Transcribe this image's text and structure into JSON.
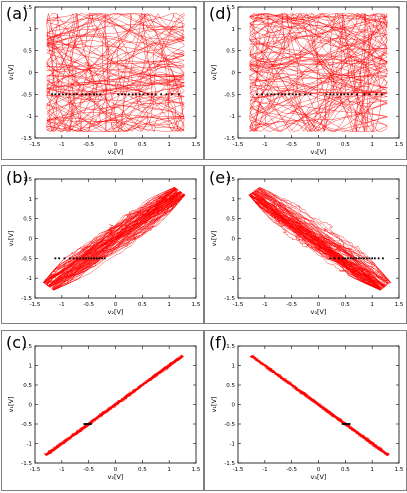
{
  "figure": {
    "grid": false,
    "colors": {
      "trajectory": "#ff0000",
      "marker": "#000000",
      "frame": "#7f7f7f"
    }
  },
  "chart_data": [
    {
      "type": "line",
      "panel_label": "(a)",
      "pattern": "chaotic",
      "xlabel": "v₂[V]",
      "ylabel": "v₁[V]",
      "xlim": [
        -1.5,
        1.5
      ],
      "ylim": [
        -1.5,
        1.5
      ],
      "x_ticks": [
        "-1.5",
        "-1",
        "-0.5",
        "0",
        "0.5",
        "1",
        "1.5"
      ],
      "y_ticks": [
        "-1.5",
        "-1",
        "-0.5",
        "0",
        "0.5",
        "1",
        "1.5"
      ],
      "marker_y": -0.5,
      "marker_x": [
        -1.18,
        -1.12,
        -1.05,
        -0.98,
        -0.92,
        -0.85,
        -0.78,
        -0.72,
        -0.62,
        -0.55,
        -0.48,
        -0.4,
        -0.35,
        -0.28,
        0.05,
        0.12,
        0.18,
        0.25,
        0.32,
        0.38,
        0.45,
        0.52,
        0.6,
        0.68,
        0.75,
        0.85,
        0.95,
        1.05,
        1.18
      ]
    },
    {
      "type": "line",
      "panel_label": "(b)",
      "pattern": "band-positive",
      "xlabel": "v₂[V]",
      "ylabel": "v₁[V]",
      "xlim": [
        -1.5,
        1.5
      ],
      "ylim": [
        -1.5,
        1.5
      ],
      "x_ticks": [
        "-1.5",
        "-1",
        "-0.5",
        "0",
        "0.5",
        "1",
        "1.5"
      ],
      "y_ticks": [
        "-1.5",
        "-1",
        "-0.5",
        "0",
        "0.5",
        "1",
        "1.5"
      ],
      "marker_y": -0.5,
      "marker_x": [
        -1.12,
        -1.05,
        -0.95,
        -0.85,
        -0.78,
        -0.72,
        -0.66,
        -0.6,
        -0.55,
        -0.5,
        -0.45,
        -0.4,
        -0.35,
        -0.3,
        -0.25,
        -0.2
      ]
    },
    {
      "type": "line",
      "panel_label": "(c)",
      "pattern": "line-positive",
      "xlabel": "v₂[V]",
      "ylabel": "v₁[V]",
      "xlim": [
        -1.5,
        1.5
      ],
      "ylim": [
        -1.5,
        1.5
      ],
      "x_ticks": [
        "-1.5",
        "-1",
        "-0.5",
        "0",
        "0.5",
        "1",
        "1.5"
      ],
      "y_ticks": [
        "-1.5",
        "-1",
        "-0.5",
        "0",
        "0.5",
        "1",
        "1.5"
      ],
      "marker_y": -0.5,
      "marker_x": [
        -0.58,
        -0.55,
        -0.52,
        -0.5,
        -0.48,
        -0.46
      ]
    },
    {
      "type": "line",
      "panel_label": "(d)",
      "pattern": "chaotic",
      "xlabel": "v₃[V]",
      "ylabel": "v₁[V]",
      "xlim": [
        -1.5,
        1.5
      ],
      "ylim": [
        -1.5,
        1.5
      ],
      "x_ticks": [
        "-1.5",
        "-1",
        "-0.5",
        "0",
        "0.5",
        "1",
        "1.5"
      ],
      "y_ticks": [
        "-1.5",
        "-1",
        "-0.5",
        "0",
        "0.5",
        "1",
        "1.5"
      ],
      "marker_y": -0.5,
      "marker_x": [
        -1.15,
        -1.05,
        -0.95,
        -0.88,
        -0.82,
        -0.75,
        -0.68,
        -0.62,
        -0.55,
        -0.48,
        -0.42,
        -0.35,
        -0.25,
        -0.15,
        0.15,
        0.22,
        0.28,
        0.35,
        0.42,
        0.48,
        0.55,
        0.62,
        0.72,
        0.85,
        0.95,
        1.08,
        1.18
      ]
    },
    {
      "type": "line",
      "panel_label": "(e)",
      "pattern": "band-negative",
      "xlabel": "v₃[V]",
      "ylabel": "v₁[V]",
      "xlim": [
        -1.5,
        1.5
      ],
      "ylim": [
        -1.5,
        1.5
      ],
      "x_ticks": [
        "-1.5",
        "-1",
        "-0.5",
        "0",
        "0.5",
        "1",
        "1.5"
      ],
      "y_ticks": [
        "-1.5",
        "-1",
        "-0.5",
        "0",
        "0.5",
        "1",
        "1.5"
      ],
      "marker_y": -0.5,
      "marker_x": [
        0.22,
        0.3,
        0.38,
        0.45,
        0.5,
        0.55,
        0.6,
        0.65,
        0.7,
        0.75,
        0.8,
        0.85,
        0.9,
        0.95,
        1.0,
        1.05,
        1.12,
        1.2
      ]
    },
    {
      "type": "line",
      "panel_label": "(f)",
      "pattern": "line-negative",
      "xlabel": "v₃[V]",
      "ylabel": "v₁[V]",
      "xlim": [
        -1.5,
        1.5
      ],
      "ylim": [
        -1.5,
        1.5
      ],
      "x_ticks": [
        "-1.5",
        "-1",
        "-0.5",
        "0",
        "0.5",
        "1",
        "1.5"
      ],
      "y_ticks": [
        "-1.5",
        "-1",
        "-0.5",
        "0",
        "0.5",
        "1",
        "1.5"
      ],
      "marker_y": -0.5,
      "marker_x": [
        0.45,
        0.48,
        0.5,
        0.52,
        0.55,
        0.58
      ]
    }
  ]
}
